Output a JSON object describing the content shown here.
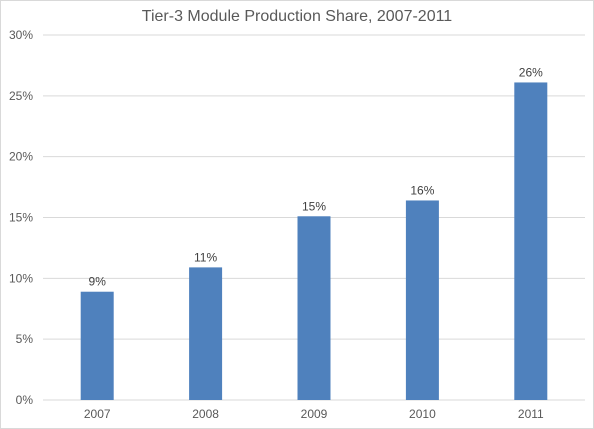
{
  "chart_data": {
    "type": "bar",
    "title": "Tier-3 Module Production Share, 2007-2011",
    "xlabel": "",
    "ylabel": "",
    "categories": [
      "2007",
      "2008",
      "2009",
      "2010",
      "2011"
    ],
    "values": [
      8.9,
      10.9,
      15.1,
      16.4,
      26.1
    ],
    "data_labels": [
      "9%",
      "11%",
      "15%",
      "16%",
      "26%"
    ],
    "ylim": [
      0,
      30
    ],
    "y_ticks": [
      0,
      5,
      10,
      15,
      20,
      25,
      30
    ],
    "y_tick_labels": [
      "0%",
      "5%",
      "10%",
      "15%",
      "20%",
      "25%",
      "30%"
    ],
    "grid": true,
    "legend": "none",
    "bar_color": "#4f81bd",
    "grid_color": "#d9d9d9"
  }
}
